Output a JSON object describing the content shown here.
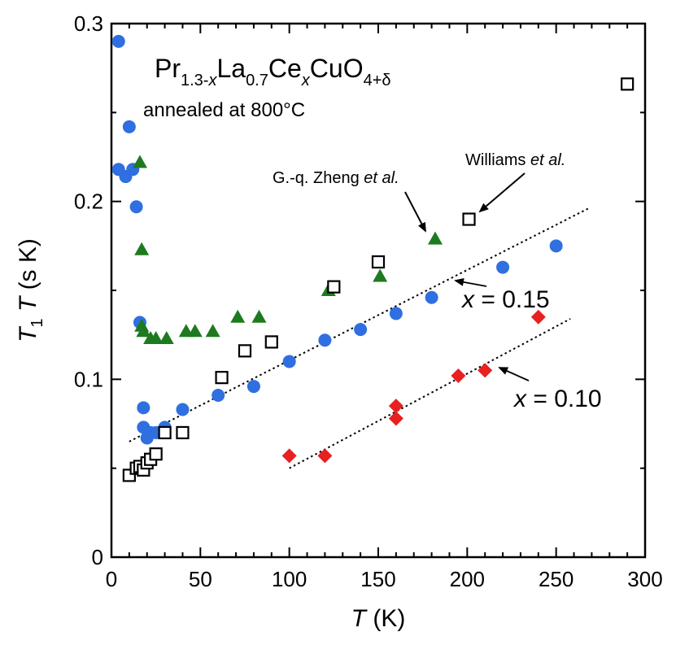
{
  "chart_data": {
    "type": "scatter",
    "title_parts": {
      "pr": "Pr",
      "pr_sub": "1.3-",
      "x_var": "x",
      "la": "La",
      "la_sub": "0.7",
      "ce": "Ce",
      "ce_sub": "x",
      "cuo": "CuO",
      "cuo_sub": "4+δ"
    },
    "subtitle": "annealed at 800°C",
    "xlabel": {
      "var": "T",
      "unit": " (K)"
    },
    "ylabel": {
      "var1": "T",
      "sub": "1",
      "var2": "T",
      "unit": " (s K)"
    },
    "xlim": [
      0,
      300
    ],
    "ylim": [
      0,
      0.3
    ],
    "x_ticks": [
      0,
      50,
      100,
      150,
      200,
      250,
      300
    ],
    "y_ticks": [
      0,
      0.1,
      0.2,
      0.3
    ],
    "x_tick_labels": [
      "0",
      "50",
      "100",
      "150",
      "200",
      "250",
      "300"
    ],
    "y_tick_labels": [
      "0",
      "0.1",
      "0.2",
      "0.3"
    ],
    "series": [
      {
        "name": "x = 0.15",
        "marker": "circle",
        "color": "#2f6fe0",
        "points": [
          [
            4,
            0.29
          ],
          [
            4,
            0.218
          ],
          [
            8,
            0.214
          ],
          [
            10,
            0.242
          ],
          [
            12,
            0.218
          ],
          [
            14,
            0.197
          ],
          [
            16,
            0.132
          ],
          [
            18,
            0.084
          ],
          [
            18,
            0.073
          ],
          [
            20,
            0.067
          ],
          [
            22,
            0.07
          ],
          [
            25,
            0.07
          ],
          [
            30,
            0.073
          ],
          [
            40,
            0.083
          ],
          [
            60,
            0.091
          ],
          [
            80,
            0.096
          ],
          [
            100,
            0.11
          ],
          [
            120,
            0.122
          ],
          [
            140,
            0.128
          ],
          [
            160,
            0.137
          ],
          [
            180,
            0.146
          ],
          [
            220,
            0.163
          ],
          [
            250,
            0.175
          ]
        ]
      },
      {
        "name": "G.-q. Zheng et al.",
        "marker": "triangle",
        "color": "#1e7a1e",
        "points": [
          [
            16,
            0.222
          ],
          [
            17,
            0.173
          ],
          [
            17,
            0.13
          ],
          [
            18,
            0.127
          ],
          [
            22,
            0.123
          ],
          [
            25,
            0.123
          ],
          [
            31,
            0.123
          ],
          [
            42,
            0.127
          ],
          [
            47,
            0.127
          ],
          [
            57,
            0.127
          ],
          [
            71,
            0.135
          ],
          [
            83,
            0.135
          ],
          [
            122,
            0.15
          ],
          [
            151,
            0.158
          ],
          [
            182,
            0.179
          ]
        ]
      },
      {
        "name": "Williams et al.",
        "marker": "open-square",
        "color": "#000000",
        "points": [
          [
            10,
            0.046
          ],
          [
            14,
            0.05
          ],
          [
            16,
            0.051
          ],
          [
            18,
            0.049
          ],
          [
            20,
            0.053
          ],
          [
            22,
            0.055
          ],
          [
            25,
            0.058
          ],
          [
            30,
            0.07
          ],
          [
            40,
            0.07
          ],
          [
            62,
            0.101
          ],
          [
            75,
            0.116
          ],
          [
            90,
            0.121
          ],
          [
            125,
            0.152
          ],
          [
            150,
            0.166
          ],
          [
            201,
            0.19
          ],
          [
            290,
            0.266
          ]
        ]
      },
      {
        "name": "x = 0.10",
        "marker": "diamond",
        "color": "#e82020",
        "points": [
          [
            100,
            0.057
          ],
          [
            120,
            0.057
          ],
          [
            160,
            0.085
          ],
          [
            160,
            0.078
          ],
          [
            195,
            0.102
          ],
          [
            210,
            0.105
          ],
          [
            240,
            0.135
          ]
        ]
      }
    ],
    "fit_lines": [
      {
        "name": "fit x = 0.15",
        "from": [
          10,
          0.065
        ],
        "to": [
          268,
          0.196
        ]
      },
      {
        "name": "fit x = 0.10",
        "from": [
          100,
          0.05
        ],
        "to": [
          258,
          0.134
        ]
      }
    ],
    "annotations": {
      "zheng": {
        "text": "G.-q. Zheng ",
        "ital": "et al."
      },
      "williams": {
        "text": "Williams ",
        "ital": "et al."
      },
      "x015": {
        "var": "x",
        "rest": " = 0.15"
      },
      "x010": {
        "var": "x",
        "rest": " = 0.10"
      }
    }
  }
}
